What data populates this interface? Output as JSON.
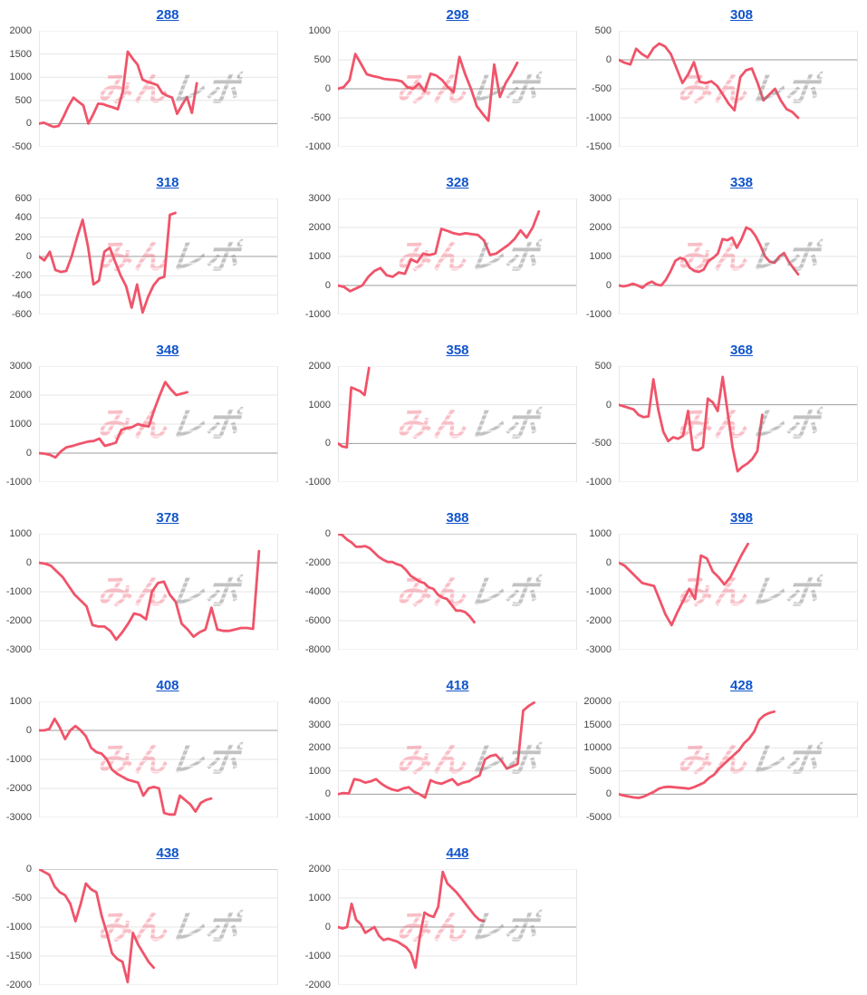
{
  "page": {
    "background": "#ffffff"
  },
  "colors": {
    "link_blue": "#1155CC",
    "line_pink": "#F0546A",
    "grid_line": "#E6E6E6",
    "zero_line": "#9E9E9E",
    "axis_label": "#444444",
    "watermark_pink": "rgba(240,84,106,0.38)",
    "watermark_gray": "rgba(128,128,128,0.48)"
  },
  "watermark": {
    "pink_text": "みん",
    "gray_text": "レポ"
  },
  "chart_data": [
    {
      "type": "line",
      "title": "288",
      "xlabel": "",
      "ylabel": "",
      "legend": "none",
      "grid": true,
      "ylim": [
        -500,
        2000
      ],
      "yticks": [
        2000,
        1500,
        1000,
        500,
        0,
        -500
      ],
      "x_span": 0.66,
      "values": [
        0,
        20,
        -30,
        -70,
        -50,
        150,
        380,
        560,
        470,
        390,
        0,
        200,
        430,
        420,
        380,
        350,
        310,
        700,
        1550,
        1400,
        1270,
        950,
        900,
        870,
        830,
        660,
        600,
        560,
        210,
        400,
        570,
        230,
        870
      ]
    },
    {
      "type": "line",
      "title": "298",
      "xlabel": "",
      "ylabel": "",
      "legend": "none",
      "grid": true,
      "ylim": [
        -1000,
        1000
      ],
      "yticks": [
        1000,
        500,
        0,
        -500,
        -1000
      ],
      "x_span": 0.75,
      "values": [
        0,
        30,
        150,
        600,
        430,
        250,
        220,
        200,
        170,
        160,
        150,
        130,
        30,
        0,
        90,
        -40,
        260,
        230,
        150,
        30,
        -60,
        550,
        250,
        0,
        -300,
        -430,
        -550,
        420,
        -140,
        100,
        260,
        450
      ]
    },
    {
      "type": "line",
      "title": "308",
      "xlabel": "",
      "ylabel": "",
      "legend": "none",
      "grid": true,
      "ylim": [
        -1500,
        500
      ],
      "yticks": [
        500,
        0,
        -500,
        -1000,
        -1500
      ],
      "x_span": 0.75,
      "values": [
        0,
        -50,
        -80,
        190,
        100,
        40,
        200,
        280,
        230,
        100,
        -150,
        -400,
        -250,
        -40,
        -380,
        -400,
        -370,
        -450,
        -600,
        -760,
        -870,
        -300,
        -180,
        -150,
        -400,
        -700,
        -600,
        -500,
        -700,
        -850,
        -900,
        -1000
      ]
    },
    {
      "type": "line",
      "title": "318",
      "xlabel": "",
      "ylabel": "",
      "legend": "none",
      "grid": true,
      "ylim": [
        -600,
        600
      ],
      "yticks": [
        600,
        400,
        200,
        0,
        -200,
        -400,
        -600
      ],
      "x_span": 0.57,
      "values": [
        0,
        -40,
        50,
        -140,
        -160,
        -150,
        0,
        200,
        380,
        100,
        -290,
        -250,
        50,
        90,
        -60,
        -200,
        -310,
        -530,
        -290,
        -580,
        -420,
        -300,
        -230,
        -210,
        430,
        450
      ]
    },
    {
      "type": "line",
      "title": "328",
      "xlabel": "",
      "ylabel": "",
      "legend": "none",
      "grid": true,
      "ylim": [
        -1000,
        3000
      ],
      "yticks": [
        3000,
        2000,
        1000,
        0,
        -1000
      ],
      "x_span": 0.84,
      "values": [
        0,
        -50,
        -200,
        -100,
        0,
        300,
        500,
        600,
        350,
        300,
        450,
        400,
        900,
        800,
        1100,
        1050,
        1100,
        1950,
        1880,
        1800,
        1760,
        1800,
        1770,
        1740,
        1550,
        1050,
        1100,
        1250,
        1400,
        1600,
        1900,
        1650,
        2000,
        2550
      ]
    },
    {
      "type": "line",
      "title": "338",
      "xlabel": "",
      "ylabel": "",
      "legend": "none",
      "grid": true,
      "ylim": [
        -1000,
        3000
      ],
      "yticks": [
        3000,
        2000,
        1000,
        0,
        -1000
      ],
      "x_span": 0.75,
      "values": [
        0,
        -30,
        0,
        60,
        0,
        -80,
        60,
        130,
        30,
        0,
        200,
        500,
        850,
        950,
        900,
        620,
        500,
        470,
        550,
        850,
        950,
        1100,
        1600,
        1560,
        1650,
        1300,
        1600,
        2000,
        1920,
        1700,
        1380,
        1000,
        820,
        780,
        1000,
        1120,
        820,
        600,
        380
      ]
    },
    {
      "type": "line",
      "title": "348",
      "xlabel": "",
      "ylabel": "",
      "legend": "none",
      "grid": true,
      "ylim": [
        -1000,
        3000
      ],
      "yticks": [
        3000,
        2000,
        1000,
        0,
        -1000
      ],
      "x_span": 0.62,
      "values": [
        0,
        -20,
        -60,
        -150,
        60,
        200,
        240,
        300,
        350,
        400,
        420,
        500,
        250,
        300,
        360,
        800,
        860,
        900,
        1000,
        950,
        920,
        1500,
        2000,
        2450,
        2200,
        2000,
        2050,
        2100
      ]
    },
    {
      "type": "line",
      "title": "358",
      "xlabel": "",
      "ylabel": "",
      "legend": "none",
      "grid": true,
      "ylim": [
        -1000,
        2000
      ],
      "yticks": [
        2000,
        1000,
        0,
        -1000
      ],
      "x_span": 0.13,
      "values": [
        0,
        -80,
        -100,
        1450,
        1400,
        1350,
        1250,
        1950
      ]
    },
    {
      "type": "line",
      "title": "368",
      "xlabel": "",
      "ylabel": "",
      "legend": "none",
      "grid": true,
      "ylim": [
        -1000,
        500
      ],
      "yticks": [
        500,
        0,
        -500,
        -1000
      ],
      "x_span": 0.6,
      "values": [
        0,
        -20,
        -40,
        -60,
        -130,
        -160,
        -150,
        330,
        -70,
        -350,
        -470,
        -420,
        -440,
        -400,
        -80,
        -580,
        -590,
        -550,
        80,
        30,
        -80,
        360,
        -100,
        -550,
        -860,
        -800,
        -760,
        -700,
        -600,
        -130
      ]
    },
    {
      "type": "line",
      "title": "378",
      "xlabel": "",
      "ylabel": "",
      "legend": "none",
      "grid": true,
      "ylim": [
        -3000,
        1000
      ],
      "yticks": [
        1000,
        0,
        -1000,
        -2000,
        -3000
      ],
      "x_span": 0.92,
      "values": [
        0,
        -30,
        -100,
        -300,
        -500,
        -800,
        -1100,
        -1300,
        -1500,
        -2150,
        -2200,
        -2200,
        -2350,
        -2650,
        -2400,
        -2100,
        -1750,
        -1800,
        -1950,
        -1000,
        -700,
        -650,
        -1100,
        -1350,
        -2100,
        -2300,
        -2550,
        -2400,
        -2300,
        -1550,
        -2300,
        -2350,
        -2350,
        -2300,
        -2250,
        -2250,
        -2280,
        400
      ]
    },
    {
      "type": "line",
      "title": "388",
      "xlabel": "",
      "ylabel": "",
      "legend": "none",
      "grid": true,
      "ylim": [
        -8000,
        0
      ],
      "yticks": [
        0,
        -2000,
        -4000,
        -6000,
        -8000
      ],
      "x_span": 0.57,
      "values": [
        0,
        -100,
        -400,
        -600,
        -900,
        -900,
        -850,
        -1000,
        -1300,
        -1600,
        -1800,
        -1950,
        -1950,
        -2100,
        -2200,
        -2500,
        -2900,
        -3100,
        -3300,
        -3400,
        -3700,
        -3800,
        -4200,
        -4400,
        -4500,
        -4900,
        -5300,
        -5300,
        -5400,
        -5700,
        -6100
      ]
    },
    {
      "type": "line",
      "title": "398",
      "xlabel": "",
      "ylabel": "",
      "legend": "none",
      "grid": true,
      "ylim": [
        -3000,
        1000
      ],
      "yticks": [
        1000,
        0,
        -1000,
        -2000,
        -3000
      ],
      "x_span": 0.54,
      "values": [
        0,
        -100,
        -300,
        -500,
        -700,
        -750,
        -800,
        -1300,
        -1800,
        -2150,
        -1700,
        -1300,
        -900,
        -1250,
        250,
        150,
        -300,
        -500,
        -750,
        -500,
        -100,
        300,
        650
      ]
    },
    {
      "type": "line",
      "title": "408",
      "xlabel": "",
      "ylabel": "",
      "legend": "none",
      "grid": true,
      "ylim": [
        -3000,
        1000
      ],
      "yticks": [
        1000,
        0,
        -1000,
        -2000,
        -3000
      ],
      "x_span": 0.72,
      "values": [
        0,
        0,
        50,
        400,
        100,
        -300,
        0,
        150,
        0,
        -200,
        -600,
        -750,
        -800,
        -1000,
        -1350,
        -1500,
        -1600,
        -1700,
        -1750,
        -1800,
        -2250,
        -2000,
        -1950,
        -2000,
        -2850,
        -2900,
        -2900,
        -2250,
        -2400,
        -2550,
        -2800,
        -2500,
        -2400,
        -2350
      ]
    },
    {
      "type": "line",
      "title": "418",
      "xlabel": "",
      "ylabel": "",
      "legend": "none",
      "grid": true,
      "ylim": [
        -1000,
        4000
      ],
      "yticks": [
        4000,
        3000,
        2000,
        1000,
        0,
        -1000
      ],
      "x_span": 0.82,
      "values": [
        0,
        50,
        30,
        650,
        600,
        500,
        550,
        650,
        450,
        300,
        200,
        150,
        250,
        300,
        100,
        0,
        -150,
        600,
        500,
        450,
        550,
        650,
        400,
        500,
        550,
        700,
        800,
        1500,
        1650,
        1700,
        1450,
        1100,
        1200,
        1300,
        3600,
        3800,
        3950
      ]
    },
    {
      "type": "line",
      "title": "428",
      "xlabel": "",
      "ylabel": "",
      "legend": "none",
      "grid": true,
      "ylim": [
        -5000,
        20000
      ],
      "yticks": [
        20000,
        15000,
        10000,
        5000,
        0,
        -5000
      ],
      "x_span": 0.65,
      "values": [
        0,
        -300,
        -500,
        -700,
        -800,
        -500,
        0,
        500,
        1200,
        1500,
        1600,
        1500,
        1400,
        1300,
        1200,
        1500,
        2000,
        2500,
        3500,
        4200,
        5500,
        6500,
        7500,
        8500,
        9500,
        11000,
        12000,
        13500,
        16000,
        17000,
        17500,
        17800
      ]
    },
    {
      "type": "line",
      "title": "438",
      "xlabel": "",
      "ylabel": "",
      "legend": "none",
      "grid": true,
      "ylim": [
        -2000,
        0
      ],
      "yticks": [
        0,
        -500,
        -1000,
        -1500,
        -2000
      ],
      "x_span": 0.48,
      "values": [
        0,
        -50,
        -100,
        -300,
        -400,
        -450,
        -600,
        -900,
        -600,
        -250,
        -350,
        -400,
        -800,
        -1100,
        -1450,
        -1550,
        -1600,
        -1950,
        -1100,
        -1300,
        -1450,
        -1600,
        -1700
      ]
    },
    {
      "type": "line",
      "title": "448",
      "xlabel": "",
      "ylabel": "",
      "legend": "none",
      "grid": true,
      "ylim": [
        -2000,
        2000
      ],
      "yticks": [
        2000,
        1000,
        0,
        -1000,
        -2000
      ],
      "x_span": 0.61,
      "values": [
        0,
        -50,
        0,
        800,
        250,
        100,
        -200,
        -100,
        0,
        -300,
        -450,
        -400,
        -450,
        -500,
        -600,
        -700,
        -900,
        -1400,
        -300,
        500,
        400,
        350,
        700,
        1900,
        1500,
        1350,
        1200,
        1000,
        800,
        600,
        400,
        250,
        200
      ]
    }
  ]
}
